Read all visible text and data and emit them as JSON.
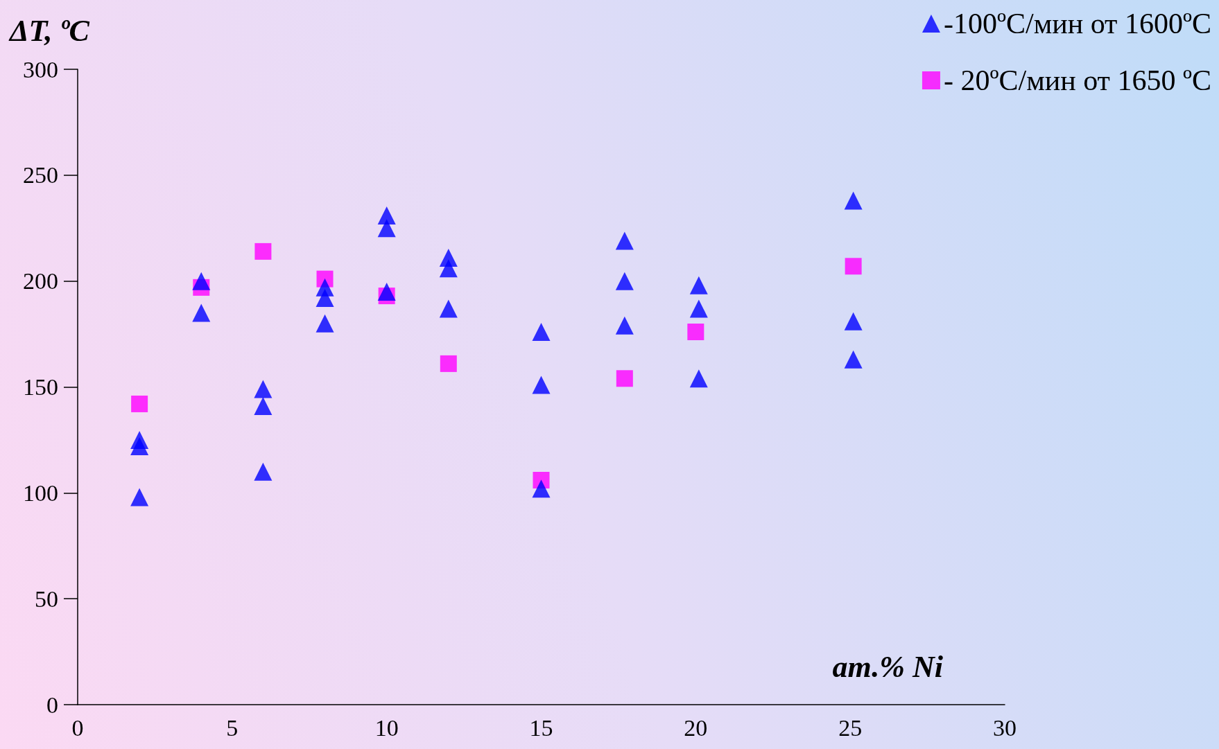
{
  "chart_data": {
    "type": "scatter",
    "xlabel": "ат.% Ni",
    "ylabel": "ΔT, ºC",
    "xlim": [
      0,
      30
    ],
    "xticks": [
      0,
      5,
      10,
      15,
      20,
      25,
      30
    ],
    "ylim": [
      0,
      300
    ],
    "yticks": [
      0,
      50,
      100,
      150,
      200,
      250,
      300
    ],
    "grid": false,
    "legend": "top right",
    "series": [
      {
        "name": "-100ºC/мин от 1600ºC",
        "color": "#0000ff",
        "marker": "triangle",
        "x": [
          2,
          2,
          2,
          4,
          4,
          6,
          6,
          6,
          8,
          8,
          8,
          10,
          10,
          10,
          12,
          12,
          12,
          15,
          15,
          15,
          17.7,
          17.7,
          17.7,
          20.1,
          20.1,
          20.1,
          25.1,
          25.1,
          25.1
        ],
        "values": [
          125,
          122,
          98,
          200,
          185,
          149,
          141,
          110,
          197,
          192,
          180,
          231,
          225,
          195,
          211,
          206,
          187,
          176,
          151,
          102,
          219,
          200,
          179,
          198,
          187,
          154,
          238,
          181,
          163
        ]
      },
      {
        "name": "- 20ºC/мин от 1650 ºC",
        "color": "#ff00ff",
        "marker": "square",
        "x": [
          2,
          4,
          6,
          8,
          10,
          12,
          15,
          17.7,
          20,
          25.1
        ],
        "values": [
          142,
          197,
          214,
          201,
          193,
          161,
          106,
          154,
          176,
          207
        ]
      }
    ]
  }
}
